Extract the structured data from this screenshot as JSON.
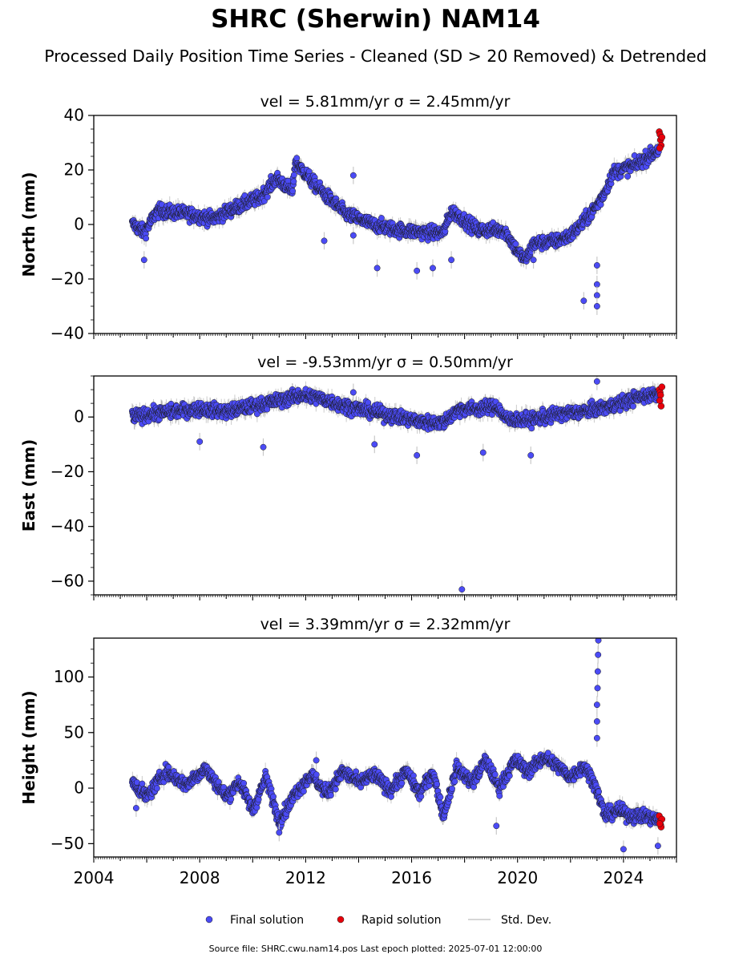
{
  "title": "SHRC (Sherwin) NAM14",
  "subtitle": "Processed Daily Position Time Series - Cleaned (SD > 20 Removed) & Detrended",
  "footer": "Source file: SHRC.cwu.nam14.pos  Last epoch plotted: 2025-07-01 12:00:00",
  "colors": {
    "final": "#4b4bf5",
    "rapid": "#e8000b",
    "stddev": "#c8c8c8",
    "edge": "#1a1a1a"
  },
  "legend": {
    "final": "Final solution",
    "rapid": "Rapid solution",
    "stddev": "Std. Dev."
  },
  "chart_data": [
    {
      "type": "scatter",
      "title": "vel = 5.81mm/yr   σ = 2.45mm/yr",
      "ylabel": "North (mm)",
      "xlabel": "",
      "xlim": [
        2004,
        2026
      ],
      "ylim": [
        -40,
        40
      ],
      "yticks": [
        -40,
        -20,
        0,
        20,
        40
      ],
      "trend_points": [
        [
          2005.5,
          0
        ],
        [
          2005.9,
          -3
        ],
        [
          2006.4,
          5
        ],
        [
          2007.5,
          4
        ],
        [
          2008.5,
          2
        ],
        [
          2009.3,
          6
        ],
        [
          2010.3,
          10
        ],
        [
          2010.9,
          17
        ],
        [
          2011.5,
          12
        ],
        [
          2011.6,
          23
        ],
        [
          2012.4,
          14
        ],
        [
          2013.5,
          4
        ],
        [
          2014.5,
          0
        ],
        [
          2015.5,
          -2
        ],
        [
          2016.5,
          -3
        ],
        [
          2017.2,
          -3
        ],
        [
          2017.5,
          5
        ],
        [
          2018.5,
          -2
        ],
        [
          2019.5,
          -2
        ],
        [
          2020.0,
          -10
        ],
        [
          2020.3,
          -13
        ],
        [
          2020.6,
          -7
        ],
        [
          2021.5,
          -6
        ],
        [
          2022.0,
          -4
        ],
        [
          2022.5,
          1
        ],
        [
          2023.0,
          7
        ],
        [
          2023.3,
          12
        ],
        [
          2023.6,
          19
        ],
        [
          2024.5,
          22
        ],
        [
          2025.4,
          28
        ]
      ],
      "outliers": [
        [
          2005.9,
          -13
        ],
        [
          2013.8,
          18
        ],
        [
          2014.7,
          -16
        ],
        [
          2016.2,
          -17
        ],
        [
          2016.8,
          -16
        ],
        [
          2017.5,
          -13
        ],
        [
          2020.6,
          -13
        ],
        [
          2022.5,
          -28
        ],
        [
          2023.0,
          -22
        ],
        [
          2023.0,
          -26
        ],
        [
          2023.0,
          -30
        ],
        [
          2023.0,
          -15
        ],
        [
          2012.7,
          -6
        ],
        [
          2013.8,
          -4
        ]
      ],
      "rapid": [
        [
          2025.35,
          34
        ],
        [
          2025.38,
          33
        ],
        [
          2025.4,
          31
        ],
        [
          2025.42,
          29
        ],
        [
          2025.45,
          32
        ],
        [
          2025.37,
          28
        ]
      ]
    },
    {
      "type": "scatter",
      "title": "vel = -9.53mm/yr   σ = 0.50mm/yr",
      "ylabel": "East (mm)",
      "xlabel": "",
      "xlim": [
        2004,
        2026
      ],
      "ylim": [
        -65,
        15
      ],
      "yticks": [
        -60,
        -40,
        -20,
        0
      ],
      "trend_points": [
        [
          2005.5,
          0
        ],
        [
          2006.0,
          1
        ],
        [
          2007.0,
          2
        ],
        [
          2008.0,
          3
        ],
        [
          2009.0,
          2
        ],
        [
          2010.0,
          4
        ],
        [
          2011.0,
          6
        ],
        [
          2011.8,
          8
        ],
        [
          2012.5,
          7
        ],
        [
          2013.5,
          4
        ],
        [
          2014.5,
          2
        ],
        [
          2015.5,
          0
        ],
        [
          2016.5,
          -2
        ],
        [
          2017.2,
          -2
        ],
        [
          2017.8,
          3
        ],
        [
          2018.5,
          3
        ],
        [
          2019.2,
          4
        ],
        [
          2019.6,
          -1
        ],
        [
          2020.5,
          -1
        ],
        [
          2021.5,
          1
        ],
        [
          2022.5,
          2
        ],
        [
          2023.5,
          4
        ],
        [
          2024.5,
          7
        ],
        [
          2025.4,
          9
        ]
      ],
      "outliers": [
        [
          2008.0,
          -9
        ],
        [
          2010.4,
          -11
        ],
        [
          2017.9,
          -63
        ],
        [
          2018.7,
          -13
        ],
        [
          2020.5,
          -14
        ],
        [
          2016.2,
          -14
        ],
        [
          2023.0,
          13
        ],
        [
          2013.8,
          9
        ],
        [
          2014.6,
          -10
        ]
      ],
      "rapid": [
        [
          2025.35,
          10
        ],
        [
          2025.38,
          9
        ],
        [
          2025.4,
          8
        ],
        [
          2025.42,
          4
        ],
        [
          2025.45,
          11
        ],
        [
          2025.37,
          6
        ]
      ]
    },
    {
      "type": "scatter",
      "title": "vel = 3.39mm/yr   σ = 2.32mm/yr",
      "ylabel": "Height (mm)",
      "xlabel": "",
      "xlim": [
        2004,
        2026
      ],
      "ylim": [
        -62,
        135
      ],
      "yticks": [
        -50,
        0,
        50,
        100
      ],
      "xticks": [
        2004,
        2008,
        2012,
        2016,
        2020,
        2024
      ],
      "trend_points": [
        [
          2005.5,
          5
        ],
        [
          2006.0,
          -8
        ],
        [
          2006.7,
          15
        ],
        [
          2007.5,
          3
        ],
        [
          2008.2,
          18
        ],
        [
          2009.0,
          -8
        ],
        [
          2009.5,
          6
        ],
        [
          2010.0,
          -20
        ],
        [
          2010.5,
          10
        ],
        [
          2011.0,
          -30
        ],
        [
          2011.6,
          -5
        ],
        [
          2012.2,
          12
        ],
        [
          2012.8,
          -5
        ],
        [
          2013.4,
          15
        ],
        [
          2014.0,
          5
        ],
        [
          2014.6,
          12
        ],
        [
          2015.2,
          -2
        ],
        [
          2015.8,
          15
        ],
        [
          2016.3,
          -5
        ],
        [
          2016.8,
          15
        ],
        [
          2017.2,
          -25
        ],
        [
          2017.7,
          18
        ],
        [
          2018.3,
          5
        ],
        [
          2018.8,
          25
        ],
        [
          2019.3,
          0
        ],
        [
          2019.9,
          25
        ],
        [
          2020.4,
          15
        ],
        [
          2021.0,
          28
        ],
        [
          2021.5,
          20
        ],
        [
          2022.0,
          10
        ],
        [
          2022.5,
          20
        ],
        [
          2022.9,
          5
        ],
        [
          2023.3,
          -25
        ],
        [
          2023.8,
          -20
        ],
        [
          2024.3,
          -25
        ],
        [
          2024.8,
          -25
        ],
        [
          2025.4,
          -30
        ]
      ],
      "outliers": [
        [
          2005.6,
          -18
        ],
        [
          2012.4,
          25
        ],
        [
          2019.2,
          -34
        ],
        [
          2023.0,
          60
        ],
        [
          2023.0,
          75
        ],
        [
          2023.02,
          90
        ],
        [
          2023.03,
          105
        ],
        [
          2023.04,
          120
        ],
        [
          2023.05,
          133
        ],
        [
          2023.0,
          45
        ],
        [
          2024.0,
          -55
        ],
        [
          2025.3,
          -52
        ],
        [
          2011.0,
          -40
        ]
      ],
      "rapid": [
        [
          2025.35,
          -25
        ],
        [
          2025.38,
          -30
        ],
        [
          2025.4,
          -33
        ],
        [
          2025.42,
          -35
        ],
        [
          2025.45,
          -28
        ],
        [
          2025.37,
          -32
        ]
      ]
    }
  ]
}
